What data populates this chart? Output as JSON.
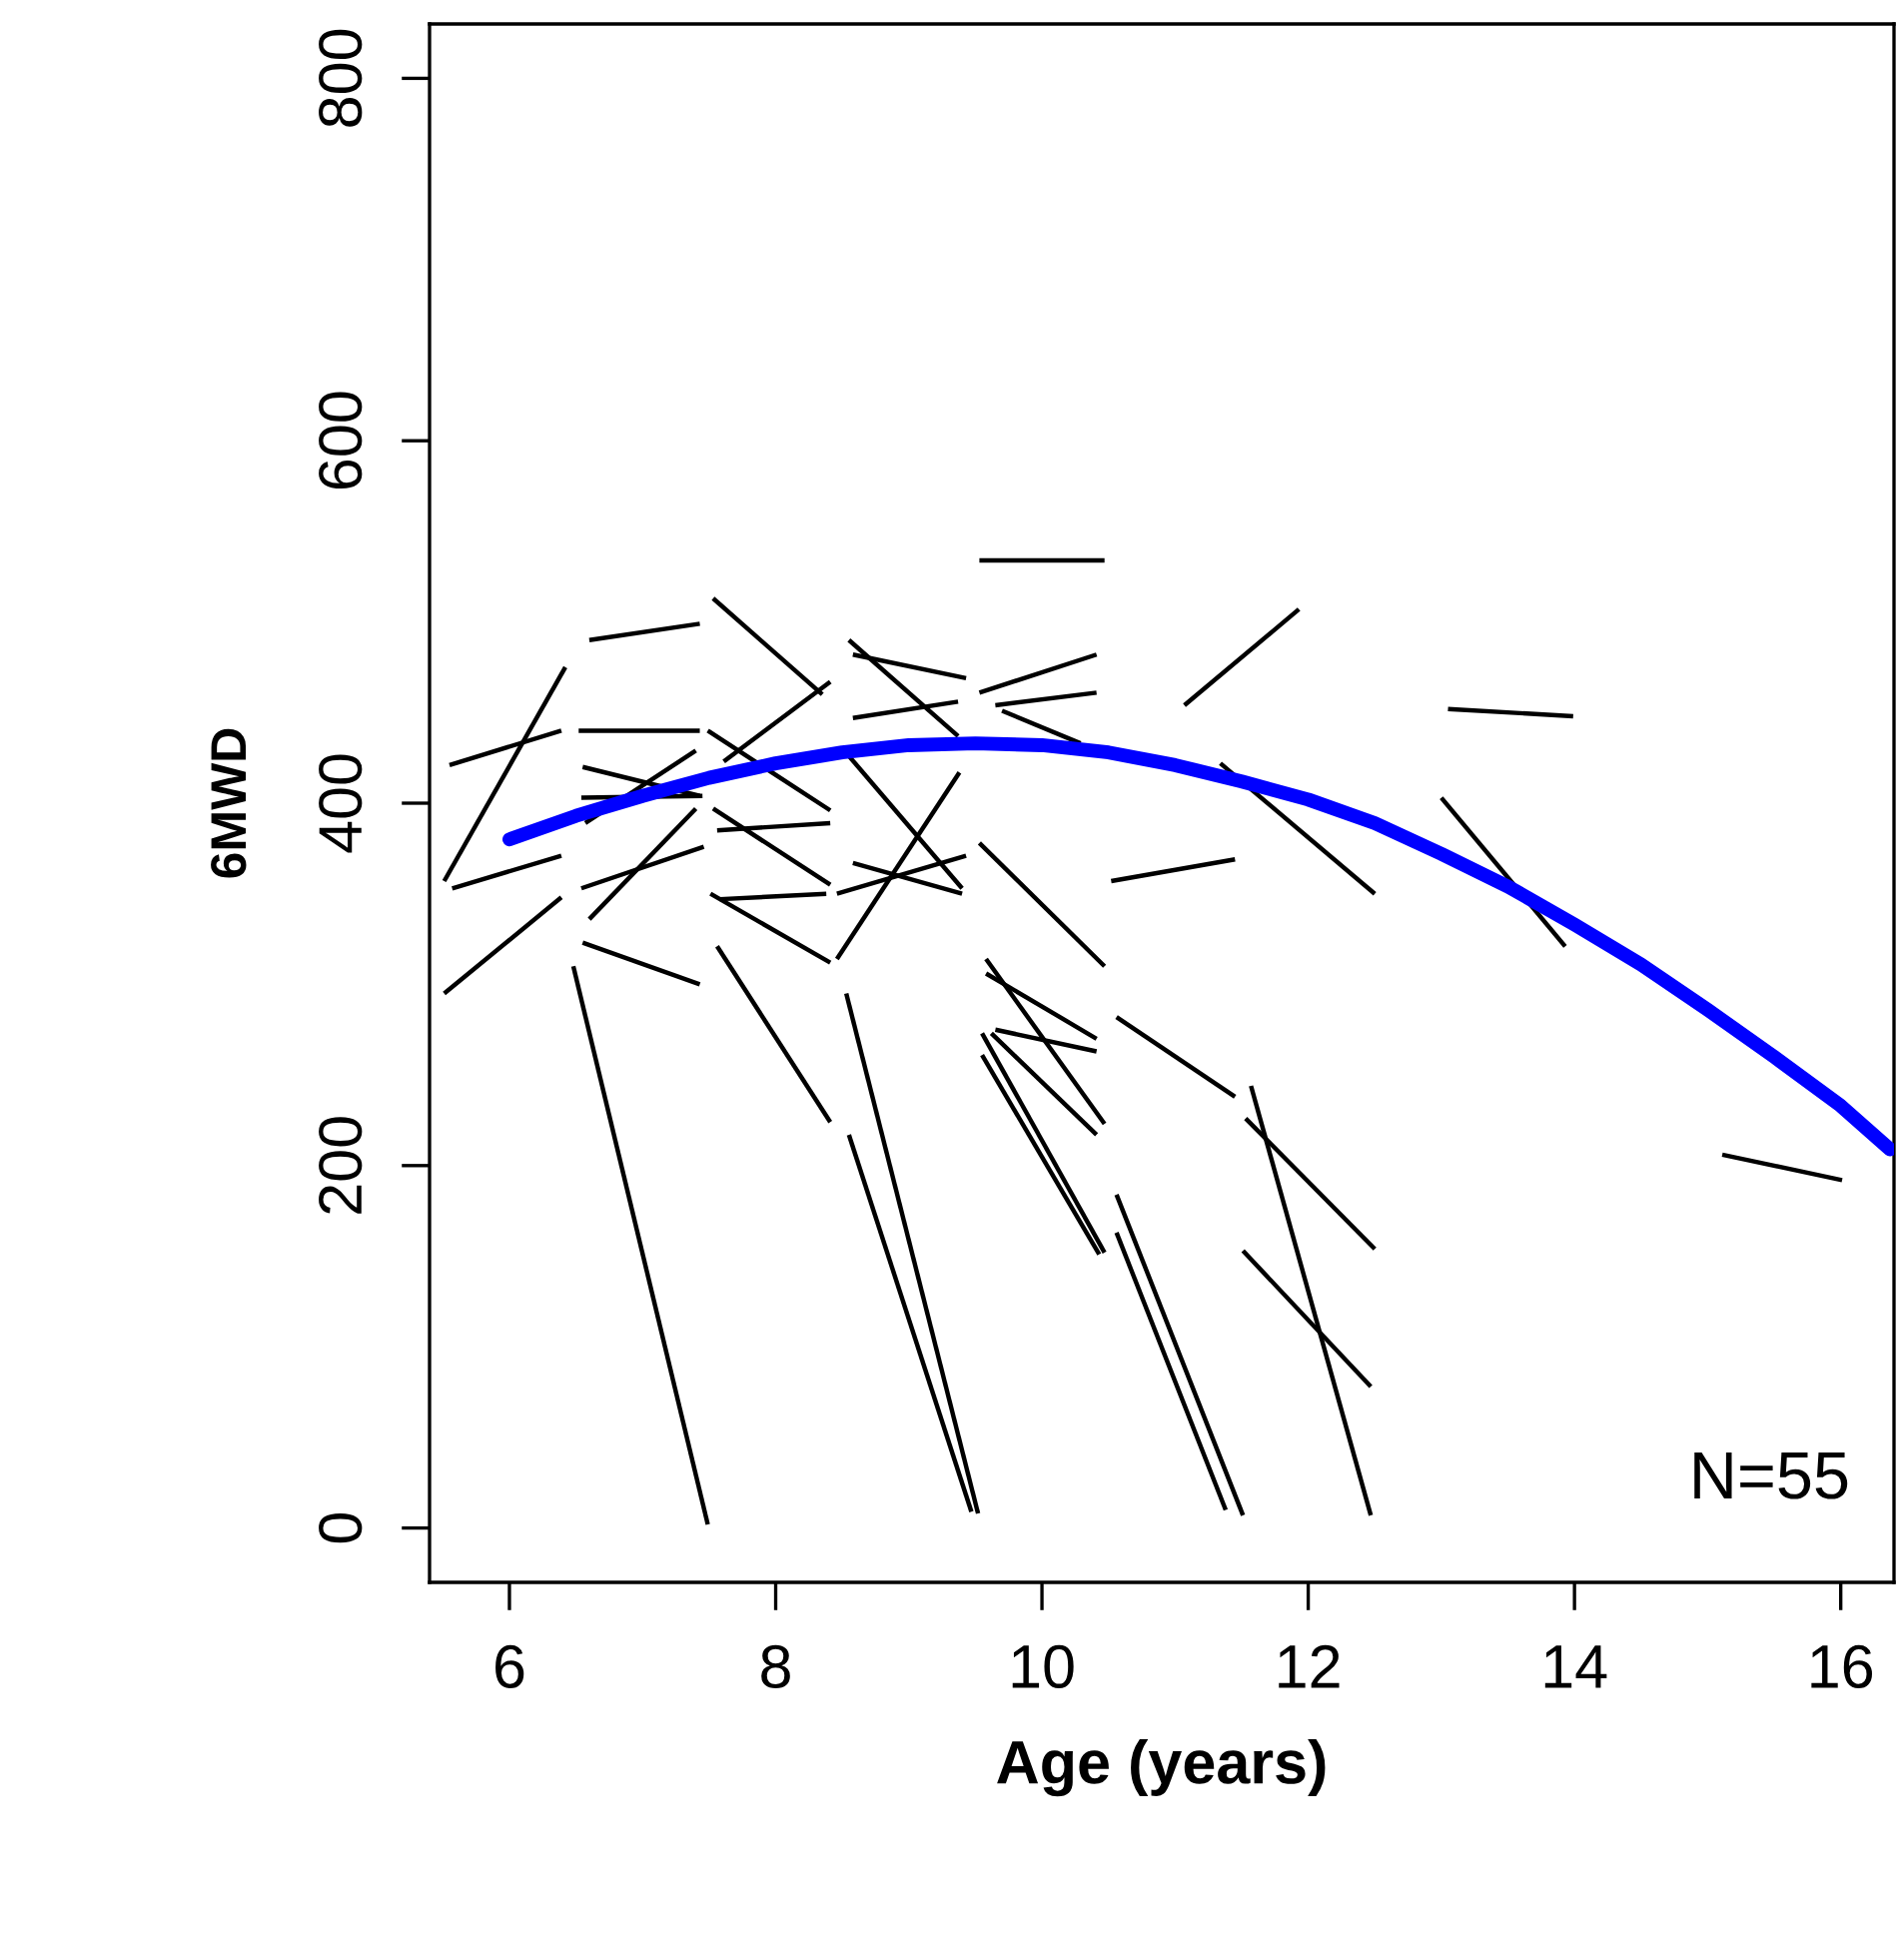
{
  "chart_data": {
    "type": "line",
    "xlabel": "Age (years)",
    "ylabel": "6MWD",
    "xlim": [
      5.4,
      16.4
    ],
    "ylim": [
      -30,
      830
    ],
    "xticks": [
      6,
      8,
      10,
      12,
      14,
      16
    ],
    "yticks": [
      0,
      200,
      400,
      600,
      800
    ],
    "grid": false,
    "marker": "none",
    "line_style": "solid",
    "annotations": [
      "N=55"
    ],
    "series": [
      {
        "color": "#000000",
        "x": [
          7.53,
          8.35
        ],
        "values": [
          513,
          460
        ]
      },
      {
        "color": "#000000",
        "x": [
          6.6,
          7.43
        ],
        "values": [
          490,
          499
        ]
      },
      {
        "color": "#000000",
        "x": [
          6.42,
          5.51
        ],
        "values": [
          475,
          357
        ]
      },
      {
        "color": "#000000",
        "x": [
          5.55,
          6.39
        ],
        "values": [
          421,
          440
        ]
      },
      {
        "color": "#000000",
        "x": [
          6.52,
          7.43
        ],
        "values": [
          440,
          440
        ]
      },
      {
        "color": "#000000",
        "x": [
          7.49,
          8.41
        ],
        "values": [
          440,
          396
        ]
      },
      {
        "color": "#000000",
        "x": [
          8.41,
          7.61
        ],
        "values": [
          467,
          423
        ]
      },
      {
        "color": "#000000",
        "x": [
          6.55,
          7.43
        ],
        "values": [
          420,
          404
        ]
      },
      {
        "color": "#000000",
        "x": [
          7.4,
          6.57
        ],
        "values": [
          429,
          389
        ]
      },
      {
        "color": "#000000",
        "x": [
          6.54,
          7.45
        ],
        "values": [
          403,
          404
        ]
      },
      {
        "color": "#000000",
        "x": [
          7.4,
          6.6
        ],
        "values": [
          397,
          336
        ]
      },
      {
        "color": "#000000",
        "x": [
          5.57,
          6.39
        ],
        "values": [
          353,
          371
        ]
      },
      {
        "color": "#000000",
        "x": [
          6.54,
          7.46
        ],
        "values": [
          353,
          376
        ]
      },
      {
        "color": "#000000",
        "x": [
          6.39,
          5.51
        ],
        "values": [
          348,
          295
        ]
      },
      {
        "color": "#000000",
        "x": [
          6.55,
          7.43
        ],
        "values": [
          323,
          300
        ]
      },
      {
        "color": "#000000",
        "x": [
          6.48,
          7.49
        ],
        "values": [
          310,
          2
        ]
      },
      {
        "color": "#000000",
        "x": [
          7.53,
          8.41
        ],
        "values": [
          397,
          355
        ]
      },
      {
        "color": "#000000",
        "x": [
          7.56,
          8.41
        ],
        "values": [
          385,
          389
        ]
      },
      {
        "color": "#000000",
        "x": [
          7.51,
          8.41
        ],
        "values": [
          350,
          312
        ]
      },
      {
        "color": "#000000",
        "x": [
          7.58,
          8.38
        ],
        "values": [
          347,
          350
        ]
      },
      {
        "color": "#000000",
        "x": [
          7.56,
          8.41
        ],
        "values": [
          321,
          224
        ]
      },
      {
        "color": "#000000",
        "x": [
          8.53,
          9.52
        ],
        "values": [
          295,
          8
        ]
      },
      {
        "color": "#000000",
        "x": [
          8.55,
          9.47
        ],
        "values": [
          217,
          9
        ]
      },
      {
        "color": "#000000",
        "x": [
          8.55,
          9.37
        ],
        "values": [
          490,
          437
        ]
      },
      {
        "color": "#000000",
        "x": [
          8.58,
          9.43
        ],
        "values": [
          482,
          469
        ]
      },
      {
        "color": "#000000",
        "x": [
          8.58,
          9.37
        ],
        "values": [
          447,
          456
        ]
      },
      {
        "color": "#000000",
        "x": [
          8.55,
          9.4
        ],
        "values": [
          426,
          353
        ]
      },
      {
        "color": "#000000",
        "x": [
          8.46,
          9.38
        ],
        "values": [
          314,
          417
        ]
      },
      {
        "color": "#000000",
        "x": [
          8.46,
          9.43
        ],
        "values": [
          350,
          371
        ]
      },
      {
        "color": "#000000",
        "x": [
          8.58,
          9.4
        ],
        "values": [
          367,
          350
        ]
      },
      {
        "color": "#000000",
        "x": [
          9.53,
          10.47
        ],
        "values": [
          534,
          534
        ]
      },
      {
        "color": "#000000",
        "x": [
          9.53,
          10.41
        ],
        "values": [
          461,
          482
        ]
      },
      {
        "color": "#000000",
        "x": [
          9.65,
          10.41
        ],
        "values": [
          454,
          461
        ]
      },
      {
        "color": "#000000",
        "x": [
          9.7,
          10.29
        ],
        "values": [
          451,
          433
        ]
      },
      {
        "color": "#000000",
        "x": [
          11.07,
          11.93
        ],
        "values": [
          454,
          507
        ]
      },
      {
        "color": "#000000",
        "x": [
          9.53,
          10.47
        ],
        "values": [
          378,
          310
        ]
      },
      {
        "color": "#000000",
        "x": [
          10.52,
          11.45
        ],
        "values": [
          357,
          369
        ]
      },
      {
        "color": "#000000",
        "x": [
          11.34,
          12.5
        ],
        "values": [
          422,
          350
        ]
      },
      {
        "color": "#000000",
        "x": [
          9.58,
          10.47
        ],
        "values": [
          314,
          223
        ]
      },
      {
        "color": "#000000",
        "x": [
          9.58,
          10.41
        ],
        "values": [
          306,
          270
        ]
      },
      {
        "color": "#000000",
        "x": [
          9.65,
          10.41
        ],
        "values": [
          275,
          263
        ]
      },
      {
        "color": "#000000",
        "x": [
          9.62,
          10.41
        ],
        "values": [
          273,
          217
        ]
      },
      {
        "color": "#000000",
        "x": [
          9.55,
          10.47
        ],
        "values": [
          273,
          152
        ]
      },
      {
        "color": "#000000",
        "x": [
          9.55,
          10.43
        ],
        "values": [
          261,
          151
        ]
      },
      {
        "color": "#000000",
        "x": [
          10.56,
          11.45
        ],
        "values": [
          282,
          238
        ]
      },
      {
        "color": "#000000",
        "x": [
          10.56,
          11.51
        ],
        "values": [
          184,
          7
        ]
      },
      {
        "color": "#000000",
        "x": [
          10.56,
          11.38
        ],
        "values": [
          163,
          10
        ]
      },
      {
        "color": "#000000",
        "x": [
          11.57,
          12.47
        ],
        "values": [
          244,
          7
        ]
      },
      {
        "color": "#000000",
        "x": [
          11.53,
          12.5
        ],
        "values": [
          226,
          154
        ]
      },
      {
        "color": "#000000",
        "x": [
          11.51,
          12.47
        ],
        "values": [
          153,
          78
        ]
      },
      {
        "color": "#000000",
        "x": [
          13.05,
          13.99
        ],
        "values": [
          452,
          448
        ]
      },
      {
        "color": "#000000",
        "x": [
          13.0,
          13.93
        ],
        "values": [
          403,
          321
        ]
      },
      {
        "color": "#000000",
        "x": [
          15.11,
          16.01
        ],
        "values": [
          206,
          192
        ]
      },
      {
        "color": "#0000ff",
        "x": [
          6,
          6.5,
          7,
          7.5,
          8,
          8.5,
          9,
          9.5,
          10,
          10.5,
          11,
          11.5,
          12,
          12.5,
          13,
          13.5,
          14,
          14.5,
          15,
          15.5,
          16,
          16.37
        ],
        "values": [
          380,
          393,
          404,
          414,
          422,
          428,
          432,
          433,
          432,
          428,
          421,
          412,
          402,
          389,
          372,
          354,
          333,
          311,
          286,
          260,
          233,
          209
        ]
      }
    ]
  }
}
